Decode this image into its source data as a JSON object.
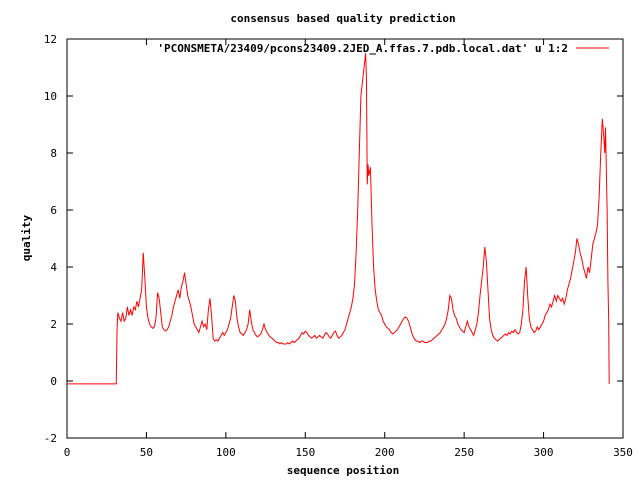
{
  "chart_data": {
    "type": "line",
    "title": "consensus based quality prediction",
    "xlabel": "sequence position",
    "ylabel": "quality",
    "xlim": [
      0,
      350
    ],
    "ylim": [
      -2,
      12
    ],
    "xticks": [
      0,
      50,
      100,
      150,
      200,
      250,
      300,
      350
    ],
    "yticks": [
      -2,
      0,
      2,
      4,
      6,
      8,
      10,
      12
    ],
    "grid": false,
    "legend_position": "top-right",
    "series": [
      {
        "name": "'PCONSMETA/23409/pcons23409.2JED_A.ffas.7.pdb.local.dat' u 1:2",
        "color": "#ff0000",
        "points": [
          [
            0,
            -0.1
          ],
          [
            31,
            -0.1
          ],
          [
            31.5,
            1.8
          ],
          [
            32,
            2.4
          ],
          [
            33,
            2.2
          ],
          [
            34,
            2.1
          ],
          [
            35,
            2.4
          ],
          [
            36,
            2.1
          ],
          [
            37,
            2.2
          ],
          [
            38,
            2.6
          ],
          [
            39,
            2.3
          ],
          [
            40,
            2.5
          ],
          [
            41,
            2.3
          ],
          [
            42,
            2.6
          ],
          [
            43,
            2.5
          ],
          [
            44,
            2.8
          ],
          [
            45,
            2.6
          ],
          [
            46,
            2.9
          ],
          [
            47,
            3.2
          ],
          [
            48,
            4.5
          ],
          [
            49,
            3.6
          ],
          [
            50,
            2.6
          ],
          [
            51,
            2.2
          ],
          [
            52,
            2.0
          ],
          [
            53,
            1.9
          ],
          [
            54,
            1.85
          ],
          [
            55,
            1.9
          ],
          [
            56,
            2.2
          ],
          [
            57,
            3.1
          ],
          [
            58,
            2.9
          ],
          [
            59,
            2.4
          ],
          [
            60,
            1.9
          ],
          [
            61,
            1.8
          ],
          [
            62,
            1.75
          ],
          [
            63,
            1.8
          ],
          [
            64,
            1.9
          ],
          [
            65,
            2.1
          ],
          [
            66,
            2.3
          ],
          [
            67,
            2.6
          ],
          [
            68,
            2.8
          ],
          [
            69,
            3.0
          ],
          [
            70,
            3.2
          ],
          [
            71,
            2.9
          ],
          [
            72,
            3.3
          ],
          [
            73,
            3.5
          ],
          [
            74,
            3.8
          ],
          [
            75,
            3.4
          ],
          [
            76,
            3.0
          ],
          [
            77,
            2.8
          ],
          [
            78,
            2.6
          ],
          [
            79,
            2.3
          ],
          [
            80,
            2.0
          ],
          [
            81,
            1.9
          ],
          [
            82,
            1.8
          ],
          [
            83,
            1.7
          ],
          [
            84,
            1.9
          ],
          [
            85,
            2.1
          ],
          [
            86,
            1.9
          ],
          [
            87,
            2.0
          ],
          [
            88,
            1.8
          ],
          [
            89,
            2.5
          ],
          [
            90,
            2.9
          ],
          [
            91,
            2.3
          ],
          [
            92,
            1.5
          ],
          [
            93,
            1.4
          ],
          [
            94,
            1.45
          ],
          [
            95,
            1.4
          ],
          [
            96,
            1.5
          ],
          [
            97,
            1.6
          ],
          [
            98,
            1.7
          ],
          [
            99,
            1.6
          ],
          [
            100,
            1.7
          ],
          [
            101,
            1.8
          ],
          [
            102,
            2.0
          ],
          [
            103,
            2.2
          ],
          [
            104,
            2.6
          ],
          [
            105,
            3.0
          ],
          [
            106,
            2.8
          ],
          [
            107,
            2.2
          ],
          [
            108,
            1.9
          ],
          [
            109,
            1.7
          ],
          [
            110,
            1.65
          ],
          [
            111,
            1.6
          ],
          [
            112,
            1.7
          ],
          [
            113,
            1.8
          ],
          [
            114,
            2.0
          ],
          [
            115,
            2.5
          ],
          [
            116,
            2.1
          ],
          [
            117,
            1.8
          ],
          [
            118,
            1.7
          ],
          [
            119,
            1.6
          ],
          [
            120,
            1.55
          ],
          [
            121,
            1.6
          ],
          [
            122,
            1.65
          ],
          [
            123,
            1.8
          ],
          [
            124,
            2.0
          ],
          [
            125,
            1.8
          ],
          [
            126,
            1.7
          ],
          [
            127,
            1.6
          ],
          [
            128,
            1.55
          ],
          [
            129,
            1.5
          ],
          [
            130,
            1.45
          ],
          [
            131,
            1.4
          ],
          [
            132,
            1.35
          ],
          [
            133,
            1.35
          ],
          [
            134,
            1.3
          ],
          [
            135,
            1.35
          ],
          [
            136,
            1.3
          ],
          [
            137,
            1.3
          ],
          [
            138,
            1.3
          ],
          [
            139,
            1.35
          ],
          [
            140,
            1.3
          ],
          [
            141,
            1.35
          ],
          [
            142,
            1.4
          ],
          [
            143,
            1.35
          ],
          [
            144,
            1.4
          ],
          [
            145,
            1.45
          ],
          [
            146,
            1.5
          ],
          [
            147,
            1.6
          ],
          [
            148,
            1.7
          ],
          [
            149,
            1.65
          ],
          [
            150,
            1.75
          ],
          [
            151,
            1.7
          ],
          [
            152,
            1.6
          ],
          [
            153,
            1.55
          ],
          [
            154,
            1.5
          ],
          [
            155,
            1.55
          ],
          [
            156,
            1.6
          ],
          [
            157,
            1.5
          ],
          [
            158,
            1.55
          ],
          [
            159,
            1.6
          ],
          [
            160,
            1.55
          ],
          [
            161,
            1.5
          ],
          [
            162,
            1.6
          ],
          [
            163,
            1.7
          ],
          [
            164,
            1.65
          ],
          [
            165,
            1.55
          ],
          [
            166,
            1.5
          ],
          [
            167,
            1.6
          ],
          [
            168,
            1.7
          ],
          [
            169,
            1.75
          ],
          [
            170,
            1.6
          ],
          [
            171,
            1.5
          ],
          [
            172,
            1.55
          ],
          [
            173,
            1.6
          ],
          [
            174,
            1.7
          ],
          [
            175,
            1.8
          ],
          [
            176,
            2.0
          ],
          [
            177,
            2.2
          ],
          [
            178,
            2.4
          ],
          [
            179,
            2.6
          ],
          [
            180,
            2.9
          ],
          [
            181,
            3.4
          ],
          [
            182,
            4.5
          ],
          [
            183,
            6.0
          ],
          [
            184,
            8.0
          ],
          [
            185,
            10.0
          ],
          [
            186,
            10.5
          ],
          [
            187,
            11.0
          ],
          [
            188,
            11.5
          ],
          [
            188.5,
            10.6
          ],
          [
            189,
            6.9
          ],
          [
            189.5,
            7.6
          ],
          [
            190,
            7.2
          ],
          [
            191,
            7.5
          ],
          [
            192,
            5.5
          ],
          [
            193,
            4.0
          ],
          [
            194,
            3.2
          ],
          [
            195,
            2.8
          ],
          [
            196,
            2.5
          ],
          [
            197,
            2.4
          ],
          [
            198,
            2.3
          ],
          [
            199,
            2.1
          ],
          [
            200,
            2.0
          ],
          [
            201,
            1.9
          ],
          [
            202,
            1.85
          ],
          [
            203,
            1.8
          ],
          [
            204,
            1.7
          ],
          [
            205,
            1.65
          ],
          [
            206,
            1.7
          ],
          [
            207,
            1.75
          ],
          [
            208,
            1.8
          ],
          [
            209,
            1.9
          ],
          [
            210,
            2.0
          ],
          [
            211,
            2.1
          ],
          [
            212,
            2.2
          ],
          [
            213,
            2.25
          ],
          [
            214,
            2.2
          ],
          [
            215,
            2.1
          ],
          [
            216,
            1.9
          ],
          [
            217,
            1.7
          ],
          [
            218,
            1.55
          ],
          [
            219,
            1.45
          ],
          [
            220,
            1.4
          ],
          [
            221,
            1.4
          ],
          [
            222,
            1.35
          ],
          [
            223,
            1.4
          ],
          [
            224,
            1.4
          ],
          [
            225,
            1.35
          ],
          [
            226,
            1.35
          ],
          [
            227,
            1.35
          ],
          [
            228,
            1.4
          ],
          [
            229,
            1.4
          ],
          [
            230,
            1.45
          ],
          [
            231,
            1.5
          ],
          [
            232,
            1.55
          ],
          [
            233,
            1.6
          ],
          [
            234,
            1.65
          ],
          [
            235,
            1.7
          ],
          [
            236,
            1.8
          ],
          [
            237,
            1.9
          ],
          [
            238,
            2.0
          ],
          [
            239,
            2.2
          ],
          [
            240,
            2.5
          ],
          [
            241,
            3.0
          ],
          [
            242,
            2.9
          ],
          [
            243,
            2.5
          ],
          [
            244,
            2.3
          ],
          [
            245,
            2.2
          ],
          [
            246,
            2.0
          ],
          [
            247,
            1.9
          ],
          [
            248,
            1.8
          ],
          [
            249,
            1.75
          ],
          [
            250,
            1.7
          ],
          [
            251,
            1.9
          ],
          [
            252,
            2.1
          ],
          [
            253,
            1.9
          ],
          [
            254,
            1.8
          ],
          [
            255,
            1.7
          ],
          [
            256,
            1.6
          ],
          [
            257,
            1.8
          ],
          [
            258,
            2.0
          ],
          [
            259,
            2.4
          ],
          [
            260,
            3.0
          ],
          [
            261,
            3.5
          ],
          [
            262,
            4.0
          ],
          [
            263,
            4.7
          ],
          [
            264,
            4.2
          ],
          [
            265,
            3.2
          ],
          [
            266,
            2.2
          ],
          [
            267,
            1.8
          ],
          [
            268,
            1.6
          ],
          [
            269,
            1.5
          ],
          [
            270,
            1.45
          ],
          [
            271,
            1.4
          ],
          [
            272,
            1.45
          ],
          [
            273,
            1.5
          ],
          [
            274,
            1.55
          ],
          [
            275,
            1.6
          ],
          [
            276,
            1.65
          ],
          [
            277,
            1.6
          ],
          [
            278,
            1.7
          ],
          [
            279,
            1.65
          ],
          [
            280,
            1.75
          ],
          [
            281,
            1.7
          ],
          [
            282,
            1.8
          ],
          [
            283,
            1.7
          ],
          [
            284,
            1.65
          ],
          [
            285,
            1.7
          ],
          [
            286,
            2.0
          ],
          [
            287,
            2.5
          ],
          [
            288,
            3.5
          ],
          [
            289,
            4.0
          ],
          [
            290,
            3.0
          ],
          [
            291,
            2.2
          ],
          [
            292,
            1.9
          ],
          [
            293,
            1.8
          ],
          [
            294,
            1.7
          ],
          [
            295,
            1.75
          ],
          [
            296,
            1.9
          ],
          [
            297,
            1.8
          ],
          [
            298,
            1.9
          ],
          [
            299,
            2.0
          ],
          [
            300,
            2.1
          ],
          [
            301,
            2.3
          ],
          [
            302,
            2.4
          ],
          [
            303,
            2.5
          ],
          [
            304,
            2.7
          ],
          [
            305,
            2.6
          ],
          [
            306,
            2.8
          ],
          [
            307,
            3.0
          ],
          [
            308,
            2.8
          ],
          [
            309,
            3.0
          ],
          [
            310,
            2.9
          ],
          [
            311,
            2.8
          ],
          [
            312,
            2.9
          ],
          [
            313,
            2.7
          ],
          [
            314,
            2.9
          ],
          [
            315,
            3.2
          ],
          [
            316,
            3.4
          ],
          [
            317,
            3.6
          ],
          [
            318,
            3.9
          ],
          [
            319,
            4.2
          ],
          [
            320,
            4.5
          ],
          [
            321,
            5.0
          ],
          [
            322,
            4.8
          ],
          [
            323,
            4.5
          ],
          [
            324,
            4.3
          ],
          [
            325,
            4.0
          ],
          [
            326,
            3.8
          ],
          [
            327,
            3.6
          ],
          [
            328,
            4.0
          ],
          [
            329,
            3.8
          ],
          [
            330,
            4.3
          ],
          [
            331,
            4.8
          ],
          [
            332,
            5.0
          ],
          [
            333,
            5.2
          ],
          [
            334,
            5.5
          ],
          [
            335,
            6.5
          ],
          [
            336,
            8.0
          ],
          [
            337,
            9.2
          ],
          [
            338,
            8.5
          ],
          [
            338.5,
            8.0
          ],
          [
            339,
            8.9
          ],
          [
            340,
            6.0
          ],
          [
            340.5,
            3.5
          ],
          [
            341,
            2.1
          ],
          [
            341.3,
            -0.1
          ]
        ]
      }
    ]
  }
}
